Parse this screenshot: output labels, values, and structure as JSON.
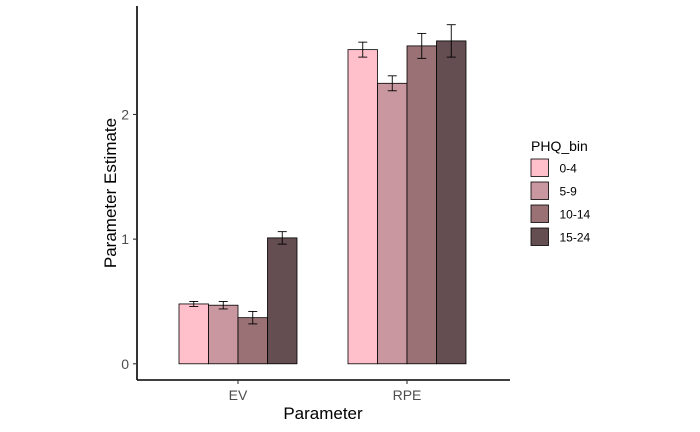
{
  "chart_data": {
    "type": "bar",
    "xlabel": "Parameter",
    "ylabel": "Parameter Estimate",
    "categories": [
      "EV",
      "RPE"
    ],
    "ylim": [
      -0.13,
      2.87
    ],
    "yticks": [
      0,
      1,
      2
    ],
    "grid": false,
    "legend": {
      "title": "PHQ_bin",
      "placement": "right"
    },
    "series": [
      {
        "name": "0-4",
        "color": "#FFC0CB",
        "values": [
          0.48,
          2.52
        ],
        "error": [
          0.02,
          0.06
        ]
      },
      {
        "name": "5-9",
        "color": "#C9979F",
        "values": [
          0.47,
          2.25
        ],
        "error": [
          0.03,
          0.06
        ]
      },
      {
        "name": "10-14",
        "color": "#9A7276",
        "values": [
          0.37,
          2.55
        ],
        "error": [
          0.05,
          0.1
        ]
      },
      {
        "name": "15-24",
        "color": "#654E51",
        "values": [
          1.01,
          2.59
        ],
        "error": [
          0.05,
          0.13
        ]
      }
    ]
  }
}
